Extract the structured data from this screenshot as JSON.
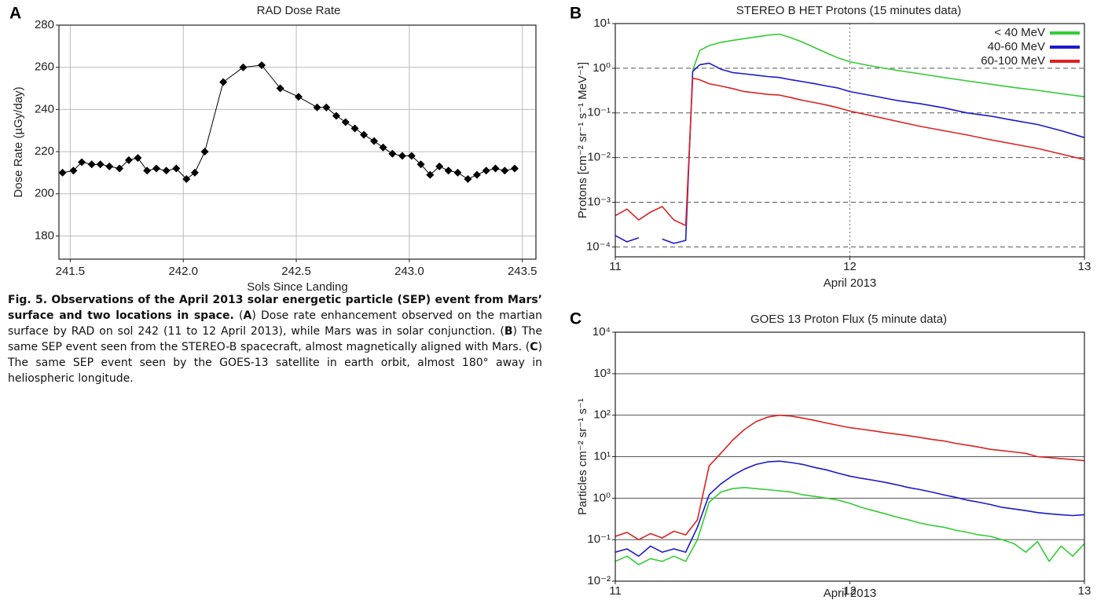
{
  "chart_data": [
    {
      "type": "line",
      "panel": "A",
      "title": "RAD Dose Rate",
      "xlabel": "Sols Since Landing",
      "ylabel": "Dose Rate (µGy/day)",
      "x": [
        241.466,
        241.514,
        241.551,
        241.595,
        241.633,
        241.673,
        241.718,
        241.759,
        241.799,
        241.84,
        241.881,
        241.925,
        241.969,
        242.014,
        242.051,
        242.095,
        242.177,
        242.265,
        242.347,
        242.429,
        242.51,
        242.592,
        242.633,
        242.677,
        242.718,
        242.759,
        242.799,
        242.844,
        242.884,
        242.925,
        242.969,
        243.01,
        243.051,
        243.092,
        243.133,
        243.173,
        243.214,
        243.259,
        243.299,
        243.34,
        243.381,
        243.422,
        243.466
      ],
      "series": [
        {
          "color": "#000000",
          "marker": "diamond",
          "values": [
            210,
            211,
            215,
            214,
            214,
            213,
            212,
            216,
            217,
            211,
            212,
            211,
            212,
            207,
            210,
            220,
            253,
            260,
            261,
            250,
            246,
            241,
            241,
            237,
            234,
            231,
            228,
            225,
            222,
            219,
            218,
            218,
            214,
            209,
            213,
            211,
            210,
            207,
            209,
            211,
            212,
            211,
            212
          ]
        }
      ],
      "xlim": [
        241.45,
        243.56
      ],
      "xticks": [
        241.5,
        {
          "value": 242.0,
          "label": "242.0"
        },
        242.5,
        {
          "value": 243.0,
          "label": "243.0"
        },
        243.5
      ],
      "ylim": [
        169,
        280
      ],
      "yticks": [
        180,
        200,
        220,
        240,
        260,
        280
      ],
      "grid": "solid",
      "x_grid": "solid",
      "log_y": false
    },
    {
      "type": "line",
      "panel": "B",
      "title": "STEREO B HET Protons (15 minutes data)",
      "xlabel": "April 2013",
      "ylabel": "Protons [cm⁻² sr⁻¹ s⁻¹ MeV⁻¹]",
      "x": [
        11.0,
        11.05,
        11.1,
        11.15,
        11.2,
        11.25,
        11.3,
        11.33,
        11.36,
        11.4,
        11.45,
        11.5,
        11.55,
        11.6,
        11.65,
        11.7,
        11.75,
        11.8,
        11.85,
        11.9,
        11.95,
        12.0,
        12.1,
        12.2,
        12.3,
        12.4,
        12.5,
        12.6,
        12.7,
        12.8,
        12.9,
        13.0
      ],
      "series": [
        {
          "name": "< 40 MeV",
          "color": "#33cc33",
          "values": [
            null,
            null,
            null,
            null,
            null,
            null,
            null,
            0.9,
            2.5,
            3.2,
            3.8,
            4.2,
            4.6,
            5.0,
            5.5,
            5.8,
            4.8,
            3.8,
            2.9,
            2.2,
            1.7,
            1.4,
            1.1,
            0.9,
            0.75,
            0.62,
            0.52,
            0.44,
            0.37,
            0.32,
            0.27,
            0.23
          ]
        },
        {
          "name": "40-60 MeV",
          "color": "#1a1acc",
          "values": [
            0.00018,
            0.00013,
            0.00016,
            null,
            0.00015,
            0.00012,
            0.00014,
            0.85,
            1.2,
            1.3,
            0.95,
            0.8,
            0.75,
            0.7,
            0.65,
            0.62,
            0.55,
            0.5,
            0.45,
            0.4,
            0.36,
            0.3,
            0.24,
            0.19,
            0.16,
            0.13,
            0.1,
            0.085,
            0.068,
            0.055,
            0.04,
            0.028
          ]
        },
        {
          "name": "60-100 MeV",
          "color": "#dd2222",
          "values": [
            0.0005,
            0.0007,
            0.0004,
            0.0006,
            0.0008,
            0.0004,
            0.0003,
            0.6,
            0.55,
            0.45,
            0.4,
            0.35,
            0.3,
            0.28,
            0.26,
            0.25,
            0.22,
            0.19,
            0.17,
            0.15,
            0.13,
            0.11,
            0.085,
            0.065,
            0.05,
            0.04,
            0.032,
            0.025,
            0.02,
            0.016,
            0.012,
            0.009
          ]
        }
      ],
      "xlim": [
        11,
        13
      ],
      "xticks": [
        11,
        12,
        13
      ],
      "ylim": [
        6e-05,
        10
      ],
      "yticks": [
        {
          "value": 10,
          "label": "10¹"
        },
        {
          "value": 1,
          "label": "10⁰"
        },
        {
          "value": 0.1,
          "label": "10⁻¹"
        },
        {
          "value": 0.01,
          "label": "10⁻²"
        },
        {
          "value": 0.001,
          "label": "10⁻³"
        },
        {
          "value": 0.0001,
          "label": "10⁻⁴"
        }
      ],
      "log_y": true,
      "grid": "dashed",
      "x_grid": "dotted",
      "legend": "upper right"
    },
    {
      "type": "line",
      "panel": "C",
      "title": "GOES 13 Proton Flux (5 minute data)",
      "xlabel": "April 2013",
      "ylabel": "Particles cm⁻² sr⁻¹ s⁻¹",
      "x": [
        11,
        11.05,
        11.1,
        11.15,
        11.2,
        11.25,
        11.3,
        11.35,
        11.4,
        11.45,
        11.5,
        11.55,
        11.6,
        11.65,
        11.7,
        11.75,
        11.8,
        11.85,
        11.9,
        11.95,
        12,
        12.05,
        12.1,
        12.15,
        12.2,
        12.25,
        12.3,
        12.35,
        12.4,
        12.45,
        12.5,
        12.55,
        12.6,
        12.65,
        12.7,
        12.75,
        12.8,
        12.85,
        12.9,
        12.95,
        13
      ],
      "series": [
        {
          "color": "#dd2222",
          "values": [
            0.12,
            0.15,
            0.1,
            0.14,
            0.11,
            0.16,
            0.13,
            0.3,
            6,
            12,
            25,
            45,
            70,
            90,
            100,
            95,
            85,
            75,
            65,
            57,
            50,
            46,
            42,
            38,
            35,
            32,
            29,
            26,
            24,
            21,
            19,
            17,
            15,
            14,
            13,
            12,
            10,
            9.5,
            9,
            8.5,
            8
          ]
        },
        {
          "color": "#1a1acc",
          "values": [
            0.05,
            0.06,
            0.04,
            0.07,
            0.05,
            0.06,
            0.05,
            0.2,
            1.2,
            2.2,
            3.5,
            5,
            6.5,
            7.5,
            7.8,
            7.2,
            6.5,
            5.5,
            4.8,
            4,
            3.4,
            3,
            2.7,
            2.4,
            2.1,
            1.8,
            1.6,
            1.4,
            1.2,
            1.05,
            0.9,
            0.8,
            0.7,
            0.6,
            0.55,
            0.5,
            0.45,
            0.42,
            0.4,
            0.38,
            0.4
          ]
        },
        {
          "color": "#33cc33",
          "values": [
            0.03,
            0.04,
            0.025,
            0.035,
            0.03,
            0.04,
            0.03,
            0.1,
            0.8,
            1.4,
            1.7,
            1.8,
            1.7,
            1.6,
            1.5,
            1.4,
            1.2,
            1.1,
            1,
            0.9,
            0.75,
            0.6,
            0.5,
            0.42,
            0.35,
            0.3,
            0.25,
            0.22,
            0.2,
            0.17,
            0.15,
            0.13,
            0.12,
            0.1,
            0.08,
            0.05,
            0.09,
            0.03,
            0.07,
            0.04,
            0.08
          ]
        }
      ],
      "xlim": [
        11,
        13
      ],
      "xticks": [
        11,
        12,
        13
      ],
      "ylim": [
        0.01,
        10000
      ],
      "yticks": [
        {
          "value": 10000,
          "label": "10⁴"
        },
        {
          "value": 1000,
          "label": "10³"
        },
        {
          "value": 100,
          "label": "10²"
        },
        {
          "value": 10,
          "label": "10¹"
        },
        {
          "value": 1,
          "label": "10⁰"
        },
        {
          "value": 0.1,
          "label": "10⁻¹"
        },
        {
          "value": 0.01,
          "label": "10⁻²"
        }
      ],
      "log_y": true,
      "grid": "solid"
    }
  ],
  "caption": {
    "title": "Fig. 5. Observations of the April 2013 solar energetic particle (SEP) event from Mars’ surface and two locations in space.",
    "segments": [
      {
        "text": " (",
        "bold": false
      },
      {
        "text": "A",
        "bold": true
      },
      {
        "text": ") Dose rate enhancement observed on the martian surface by RAD on sol 242 (11 to 12 April 2013), while Mars was in solar conjunction. (",
        "bold": false
      },
      {
        "text": "B",
        "bold": true
      },
      {
        "text": ") The same SEP event seen from the STEREO-B spacecraft, almost magnetically aligned with Mars. (",
        "bold": false
      },
      {
        "text": "C",
        "bold": true
      },
      {
        "text": ") The same SEP event seen by the GOES-13 satellite in earth orbit, almost 180° away in heliospheric longitude.",
        "bold": false
      }
    ]
  }
}
